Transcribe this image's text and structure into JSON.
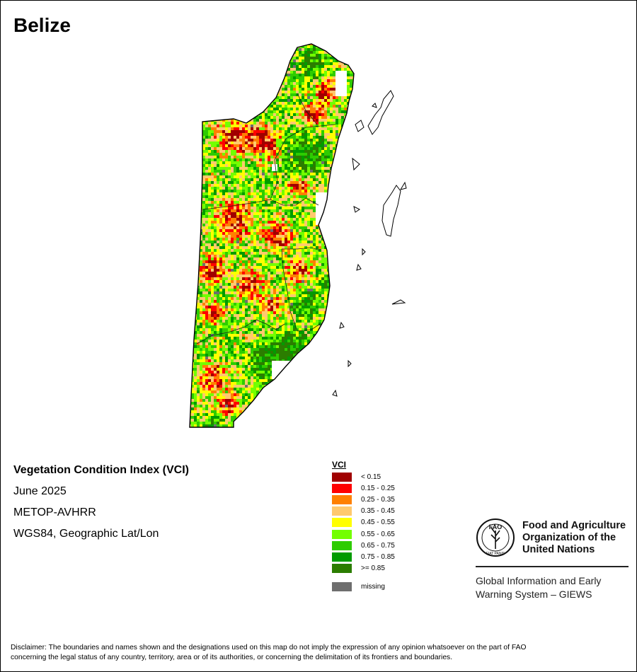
{
  "title": "Belize",
  "info": {
    "index_name": "Vegetation Condition Index (VCI)",
    "period": "June 2025",
    "sensor": "METOP-AVHRR",
    "projection": "WGS84, Geographic Lat/Lon"
  },
  "legend": {
    "title": "VCI",
    "classes": [
      {
        "label": "< 0.15",
        "color": "#a00000"
      },
      {
        "label": "0.15 - 0.25",
        "color": "#ff0000"
      },
      {
        "label": "0.25 - 0.35",
        "color": "#ff8000"
      },
      {
        "label": "0.35 - 0.45",
        "color": "#ffc96e"
      },
      {
        "label": "0.45 - 0.55",
        "color": "#ffff00"
      },
      {
        "label": "0.55 - 0.65",
        "color": "#73ff00"
      },
      {
        "label": "0.65 - 0.75",
        "color": "#2ecc00"
      },
      {
        "label": "0.75 - 0.85",
        "color": "#009b00"
      },
      {
        "label": ">= 0.85",
        "color": "#2b7d00"
      }
    ],
    "missing": {
      "label": "missing",
      "color": "#6e6e6e"
    }
  },
  "fao": {
    "org_line1": "Food and Agriculture",
    "org_line2": "Organization of the",
    "org_line3": "United Nations",
    "emblem_text": "FAO",
    "motto": "FIAT PANIS",
    "giews_line1": "Global Information and Early",
    "giews_line2": "Warning System – GIEWS"
  },
  "disclaimer": {
    "line1": "Disclaimer: The boundaries and names shown and the designations used on this map do not imply the expression of any opinion whatsoever on the part of FAO",
    "line2": "concerning the legal status of any country, territory, area or of its authorities, or concerning the delimitation of its frontiers and boundaries."
  }
}
